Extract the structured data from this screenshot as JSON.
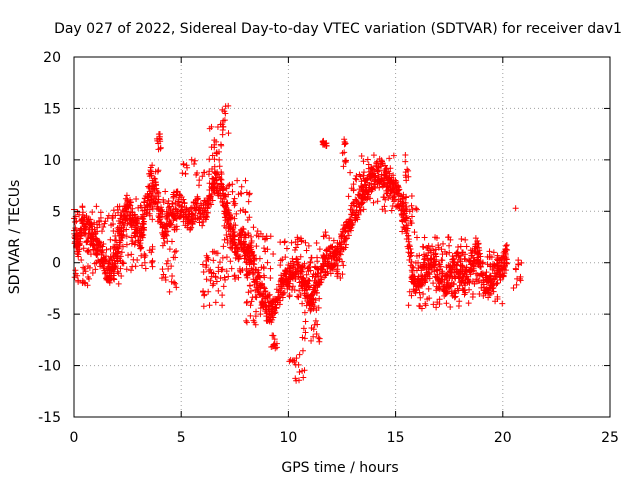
{
  "chart_data": {
    "type": "scatter",
    "title": "Day 027 of 2022, Sidereal Day-to-day VTEC variation (SDTVAR) for receiver dav1",
    "xlabel": "GPS time / hours",
    "ylabel": "SDTVAR / TECUs",
    "xlim": [
      0,
      25
    ],
    "ylim": [
      -15,
      20
    ],
    "x_ticks": [
      0,
      5,
      10,
      15,
      20,
      25
    ],
    "y_ticks": [
      -15,
      -10,
      -5,
      0,
      5,
      10,
      15,
      20
    ],
    "grid": true,
    "marker": "+",
    "color": "#ff0000",
    "series": [
      {
        "name": "SDTVAR",
        "trace": [
          [
            0.0,
            3.5
          ],
          [
            0.2,
            1.0
          ],
          [
            0.4,
            4.0
          ],
          [
            0.7,
            3.0
          ],
          [
            1.0,
            2.0
          ],
          [
            1.3,
            0.5
          ],
          [
            1.6,
            -1.0
          ],
          [
            1.9,
            0.0
          ],
          [
            2.2,
            3.5
          ],
          [
            2.5,
            5.5
          ],
          [
            2.8,
            4.0
          ],
          [
            3.1,
            2.0
          ],
          [
            3.3,
            5.0
          ],
          [
            3.6,
            8.5
          ],
          [
            3.9,
            6.0
          ],
          [
            4.2,
            3.0
          ],
          [
            4.5,
            4.5
          ],
          [
            4.8,
            6.0
          ],
          [
            5.1,
            5.0
          ],
          [
            5.4,
            4.0
          ],
          [
            5.7,
            5.5
          ],
          [
            6.0,
            4.5
          ],
          [
            6.3,
            6.0
          ],
          [
            6.6,
            8.0
          ],
          [
            6.9,
            7.0
          ],
          [
            7.1,
            5.0
          ],
          [
            7.3,
            3.0
          ],
          [
            7.6,
            1.0
          ],
          [
            7.9,
            2.5
          ],
          [
            8.2,
            1.0
          ],
          [
            8.5,
            -1.5
          ],
          [
            8.8,
            -3.0
          ],
          [
            9.1,
            -5.0
          ],
          [
            9.3,
            -4.5
          ],
          [
            9.6,
            -3.0
          ],
          [
            9.9,
            -1.5
          ],
          [
            10.2,
            -0.5
          ],
          [
            10.5,
            -1.0
          ],
          [
            10.8,
            -2.0
          ],
          [
            11.1,
            -4.0
          ],
          [
            11.3,
            -2.0
          ],
          [
            11.6,
            -0.5
          ],
          [
            11.9,
            0.5
          ],
          [
            12.2,
            0.5
          ],
          [
            12.5,
            2.0
          ],
          [
            12.8,
            3.5
          ],
          [
            13.1,
            5.0
          ],
          [
            13.4,
            6.0
          ],
          [
            13.7,
            7.5
          ],
          [
            14.0,
            8.5
          ],
          [
            14.3,
            9.0
          ],
          [
            14.6,
            8.0
          ],
          [
            14.9,
            7.0
          ],
          [
            15.2,
            6.0
          ],
          [
            15.5,
            4.0
          ],
          [
            15.8,
            -1.5
          ],
          [
            16.1,
            -2.0
          ],
          [
            16.4,
            -0.5
          ],
          [
            16.7,
            0.5
          ],
          [
            17.0,
            -1.0
          ],
          [
            17.3,
            -2.5
          ],
          [
            17.6,
            -1.0
          ],
          [
            17.9,
            0.0
          ],
          [
            18.2,
            -2.0
          ],
          [
            18.5,
            -0.5
          ],
          [
            18.8,
            1.5
          ],
          [
            19.1,
            -1.5
          ],
          [
            19.4,
            -2.5
          ],
          [
            19.7,
            -1.0
          ],
          [
            20.0,
            -0.5
          ],
          [
            20.2,
            1.0
          ]
        ],
        "clusters": [
          {
            "x": [
              0.0,
              2.3
            ],
            "y": [
              -2.2,
              5.5
            ]
          },
          {
            "x": [
              1.8,
              3.7
            ],
            "y": [
              -1.0,
              6.2
            ]
          },
          {
            "x": [
              3.5,
              4.0
            ],
            "y": [
              4.0,
              9.5
            ]
          },
          {
            "x": [
              3.85,
              4.05
            ],
            "y": [
              11.0,
              12.6
            ]
          },
          {
            "x": [
              4.1,
              4.8
            ],
            "y": [
              -3.2,
              7.0
            ]
          },
          {
            "x": [
              5.0,
              5.8
            ],
            "y": [
              8.5,
              10.2
            ]
          },
          {
            "x": [
              5.8,
              6.6
            ],
            "y": [
              7.5,
              9.0
            ]
          },
          {
            "x": [
              6.3,
              7.0
            ],
            "y": [
              8.0,
              13.5
            ]
          },
          {
            "x": [
              6.9,
              7.25
            ],
            "y": [
              12.0,
              15.3
            ]
          },
          {
            "x": [
              6.0,
              7.0
            ],
            "y": [
              -4.5,
              2.0
            ]
          },
          {
            "x": [
              7.0,
              8.2
            ],
            "y": [
              -2.0,
              8.0
            ]
          },
          {
            "x": [
              8.0,
              9.3
            ],
            "y": [
              -6.2,
              3.5
            ]
          },
          {
            "x": [
              9.2,
              9.5
            ],
            "y": [
              -8.5,
              -7.0
            ]
          },
          {
            "x": [
              9.6,
              10.8
            ],
            "y": [
              -3.5,
              2.5
            ]
          },
          {
            "x": [
              10.0,
              10.8
            ],
            "y": [
              -11.5,
              -8.5
            ]
          },
          {
            "x": [
              10.6,
              11.5
            ],
            "y": [
              -8.0,
              2.0
            ]
          },
          {
            "x": [
              11.5,
              12.7
            ],
            "y": [
              -1.5,
              3.0
            ]
          },
          {
            "x": [
              11.6,
              11.8
            ],
            "y": [
              11.3,
              11.9
            ]
          },
          {
            "x": [
              12.5,
              12.75
            ],
            "y": [
              9.0,
              12.2
            ]
          },
          {
            "x": [
              12.8,
              13.4
            ],
            "y": [
              4.5,
              9.0
            ]
          },
          {
            "x": [
              13.3,
              15.6
            ],
            "y": [
              5.0,
              10.5
            ]
          },
          {
            "x": [
              15.3,
              16.0
            ],
            "y": [
              2.5,
              7.0
            ]
          },
          {
            "x": [
              15.6,
              18.5
            ],
            "y": [
              -4.5,
              2.5
            ]
          },
          {
            "x": [
              18.5,
              20.2
            ],
            "y": [
              -4.0,
              1.5
            ]
          },
          {
            "x": [
              20.5,
              20.9
            ],
            "y": [
              -2.5,
              0.3
            ]
          }
        ],
        "outliers": [
          [
            20.6,
            5.3
          ],
          [
            11.65,
            11.6
          ]
        ]
      }
    ]
  }
}
